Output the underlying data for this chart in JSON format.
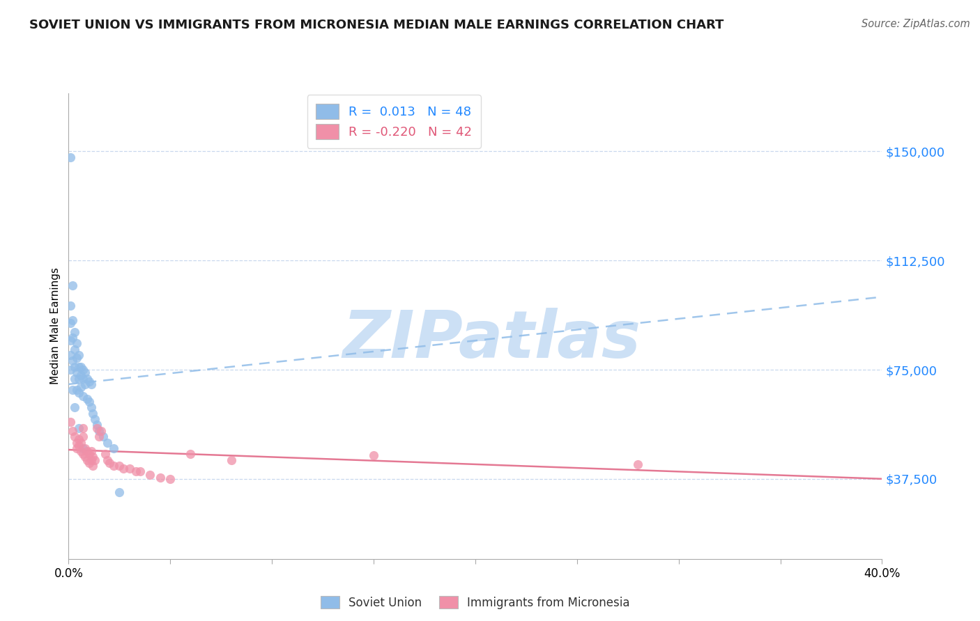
{
  "title": "SOVIET UNION VS IMMIGRANTS FROM MICRONESIA MEDIAN MALE EARNINGS CORRELATION CHART",
  "source": "Source: ZipAtlas.com",
  "ylabel": "Median Male Earnings",
  "r_blue": 0.013,
  "n_blue": 48,
  "r_pink": -0.22,
  "n_pink": 42,
  "xmin": 0.0,
  "xmax": 0.4,
  "ymin": 10000,
  "ymax": 170000,
  "yticks": [
    37500,
    75000,
    112500,
    150000
  ],
  "ytick_labels": [
    "$37,500",
    "$75,000",
    "$112,500",
    "$150,000"
  ],
  "gridline_color": "#c8d8ee",
  "blue_color": "#90bce8",
  "pink_color": "#f090a8",
  "blue_line_color": "#90bce8",
  "pink_line_color": "#e06080",
  "blue_trend_x": [
    0.0,
    0.4
  ],
  "blue_trend_y": [
    70000,
    100000
  ],
  "pink_trend_x": [
    0.0,
    0.4
  ],
  "pink_trend_y": [
    47500,
    37500
  ],
  "blue_scatter_x": [
    0.001,
    0.001,
    0.001,
    0.001,
    0.001,
    0.002,
    0.002,
    0.002,
    0.002,
    0.003,
    0.003,
    0.003,
    0.003,
    0.004,
    0.004,
    0.004,
    0.004,
    0.005,
    0.005,
    0.005,
    0.005,
    0.006,
    0.006,
    0.006,
    0.007,
    0.007,
    0.007,
    0.008,
    0.008,
    0.009,
    0.009,
    0.01,
    0.01,
    0.011,
    0.011,
    0.012,
    0.013,
    0.014,
    0.015,
    0.017,
    0.019,
    0.022,
    0.025,
    0.001,
    0.002,
    0.003,
    0.005,
    0.007
  ],
  "blue_scatter_y": [
    148000,
    97000,
    91000,
    85000,
    80000,
    104000,
    92000,
    86000,
    78000,
    88000,
    82000,
    76000,
    72000,
    84000,
    79000,
    74000,
    68000,
    80000,
    76000,
    72000,
    67000,
    76000,
    73000,
    69000,
    75000,
    72000,
    66000,
    74000,
    70000,
    72000,
    65000,
    71000,
    64000,
    70000,
    62000,
    60000,
    58000,
    56000,
    54000,
    52000,
    50000,
    48000,
    33000,
    75000,
    68000,
    62000,
    55000,
    48000
  ],
  "pink_scatter_x": [
    0.001,
    0.002,
    0.003,
    0.004,
    0.004,
    0.005,
    0.005,
    0.006,
    0.006,
    0.007,
    0.007,
    0.007,
    0.008,
    0.008,
    0.009,
    0.009,
    0.01,
    0.01,
    0.011,
    0.011,
    0.012,
    0.012,
    0.013,
    0.014,
    0.015,
    0.016,
    0.018,
    0.019,
    0.02,
    0.022,
    0.025,
    0.027,
    0.03,
    0.033,
    0.035,
    0.04,
    0.045,
    0.05,
    0.06,
    0.08,
    0.15,
    0.28
  ],
  "pink_scatter_y": [
    57000,
    54000,
    52000,
    50000,
    48000,
    51000,
    49000,
    50000,
    47000,
    55000,
    52000,
    46000,
    48000,
    45000,
    47000,
    44000,
    46000,
    43000,
    47000,
    44000,
    45000,
    42000,
    44000,
    55000,
    52000,
    54000,
    46000,
    44000,
    43000,
    42000,
    42000,
    41000,
    41000,
    40000,
    40000,
    39000,
    38000,
    37500,
    46000,
    44000,
    45500,
    42500
  ],
  "watermark_text": "ZIPatlas",
  "watermark_color": "#cce0f5",
  "legend_blue_label": "Soviet Union",
  "legend_pink_label": "Immigrants from Micronesia",
  "background_color": "#ffffff"
}
